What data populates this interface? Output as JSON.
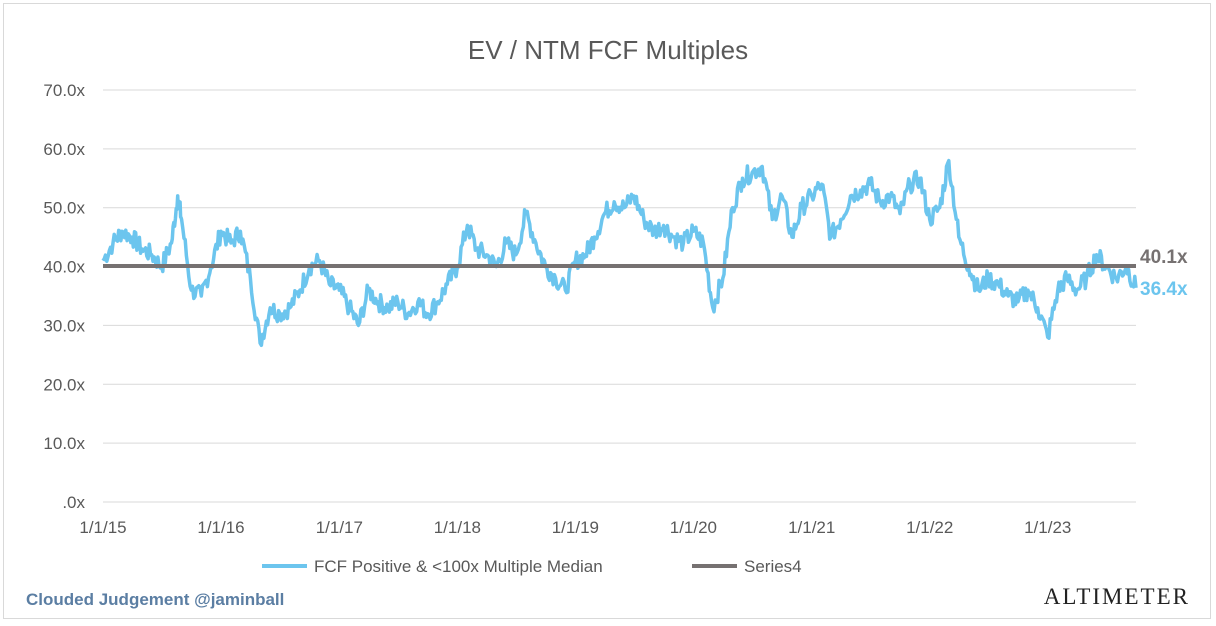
{
  "chart_data": {
    "type": "line",
    "title": "EV / NTM FCF Multiples",
    "xlabel": "",
    "ylabel": "",
    "ylim": [
      0,
      70
    ],
    "y_ticks": [
      ".0x",
      "10.0x",
      "20.0x",
      "30.0x",
      "40.0x",
      "50.0x",
      "60.0x",
      "70.0x"
    ],
    "x_ticks": [
      "1/1/15",
      "1/1/16",
      "1/1/17",
      "1/1/18",
      "1/1/19",
      "1/1/20",
      "1/1/21",
      "1/1/22",
      "1/1/23"
    ],
    "x_range": [
      "2015-01-01",
      "2023-10-01"
    ],
    "grid": true,
    "legend_position": "bottom",
    "series": [
      {
        "name": "FCF Positive & <100x Multiple Median",
        "color": "#6cc5ee",
        "end_label": "36.4x",
        "points": [
          [
            "2015-01-01",
            41
          ],
          [
            "2015-02-01",
            44
          ],
          [
            "2015-03-01",
            46
          ],
          [
            "2015-04-01",
            45
          ],
          [
            "2015-05-01",
            43
          ],
          [
            "2015-06-01",
            42
          ],
          [
            "2015-07-01",
            40
          ],
          [
            "2015-08-01",
            44
          ],
          [
            "2015-08-20",
            52
          ],
          [
            "2015-09-01",
            48
          ],
          [
            "2015-10-01",
            36
          ],
          [
            "2015-11-01",
            35
          ],
          [
            "2015-12-01",
            40
          ],
          [
            "2016-01-01",
            46
          ],
          [
            "2016-02-01",
            44
          ],
          [
            "2016-03-01",
            46
          ],
          [
            "2016-04-01",
            38
          ],
          [
            "2016-05-01",
            27
          ],
          [
            "2016-06-01",
            33
          ],
          [
            "2016-07-01",
            32
          ],
          [
            "2016-08-01",
            33
          ],
          [
            "2016-09-01",
            36
          ],
          [
            "2016-10-01",
            40
          ],
          [
            "2016-11-01",
            41
          ],
          [
            "2016-12-01",
            37
          ],
          [
            "2017-01-01",
            36
          ],
          [
            "2017-02-01",
            33
          ],
          [
            "2017-03-01",
            30
          ],
          [
            "2017-04-01",
            36
          ],
          [
            "2017-05-01",
            34
          ],
          [
            "2017-06-01",
            33
          ],
          [
            "2017-07-01",
            34
          ],
          [
            "2017-08-01",
            32
          ],
          [
            "2017-09-01",
            34
          ],
          [
            "2017-10-01",
            32
          ],
          [
            "2017-11-01",
            34
          ],
          [
            "2017-12-01",
            37
          ],
          [
            "2018-01-01",
            40
          ],
          [
            "2018-02-01",
            47
          ],
          [
            "2018-03-01",
            43
          ],
          [
            "2018-04-01",
            42
          ],
          [
            "2018-05-01",
            40
          ],
          [
            "2018-06-01",
            44
          ],
          [
            "2018-07-01",
            42
          ],
          [
            "2018-08-01",
            49
          ],
          [
            "2018-09-01",
            44
          ],
          [
            "2018-10-01",
            40
          ],
          [
            "2018-11-01",
            38
          ],
          [
            "2018-12-01",
            36
          ],
          [
            "2019-01-01",
            41
          ],
          [
            "2019-02-01",
            42
          ],
          [
            "2019-03-01",
            45
          ],
          [
            "2019-04-01",
            49
          ],
          [
            "2019-05-01",
            51
          ],
          [
            "2019-06-01",
            50
          ],
          [
            "2019-07-01",
            52
          ],
          [
            "2019-08-01",
            48
          ],
          [
            "2019-09-01",
            46
          ],
          [
            "2019-10-01",
            47
          ],
          [
            "2019-11-01",
            45
          ],
          [
            "2019-12-01",
            44
          ],
          [
            "2020-01-01",
            46
          ],
          [
            "2020-02-01",
            44
          ],
          [
            "2020-03-01",
            33
          ],
          [
            "2020-04-01",
            38
          ],
          [
            "2020-05-01",
            50
          ],
          [
            "2020-06-01",
            55
          ],
          [
            "2020-07-01",
            56
          ],
          [
            "2020-08-01",
            57
          ],
          [
            "2020-09-01",
            48
          ],
          [
            "2020-10-01",
            52
          ],
          [
            "2020-11-01",
            45
          ],
          [
            "2020-12-01",
            50
          ],
          [
            "2021-01-01",
            52
          ],
          [
            "2021-02-01",
            54
          ],
          [
            "2021-03-01",
            45
          ],
          [
            "2021-04-01",
            48
          ],
          [
            "2021-05-01",
            52
          ],
          [
            "2021-06-01",
            53
          ],
          [
            "2021-07-01",
            54
          ],
          [
            "2021-08-01",
            51
          ],
          [
            "2021-09-01",
            52
          ],
          [
            "2021-10-01",
            49
          ],
          [
            "2021-11-01",
            54
          ],
          [
            "2021-12-01",
            55
          ],
          [
            "2022-01-01",
            48
          ],
          [
            "2022-02-01",
            50
          ],
          [
            "2022-03-01",
            58
          ],
          [
            "2022-04-01",
            45
          ],
          [
            "2022-05-01",
            40
          ],
          [
            "2022-06-01",
            36
          ],
          [
            "2022-07-01",
            38
          ],
          [
            "2022-08-01",
            37
          ],
          [
            "2022-09-01",
            35
          ],
          [
            "2022-10-01",
            34
          ],
          [
            "2022-11-01",
            36
          ],
          [
            "2022-12-01",
            33
          ],
          [
            "2023-01-01",
            28
          ],
          [
            "2023-02-01",
            36
          ],
          [
            "2023-03-01",
            38
          ],
          [
            "2023-04-01",
            36
          ],
          [
            "2023-05-01",
            38
          ],
          [
            "2023-06-01",
            42
          ],
          [
            "2023-07-01",
            40
          ],
          [
            "2023-08-01",
            38
          ],
          [
            "2023-09-01",
            40
          ],
          [
            "2023-10-01",
            36.4
          ]
        ]
      },
      {
        "name": "Series4",
        "color": "#767171",
        "end_label": "40.1x",
        "points": [
          [
            "2015-01-01",
            40.1
          ],
          [
            "2023-10-01",
            40.1
          ]
        ]
      }
    ]
  },
  "footer": {
    "left_text": "Clouded Judgement @jaminball",
    "right_text": "ALTIMETER"
  }
}
